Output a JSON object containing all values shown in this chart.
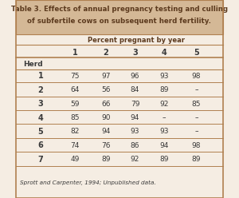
{
  "title_line1": "Table 3. Effects of annual pregnancy testing and culling",
  "title_line2": "of subfertile cows on subsequent herd fertility.",
  "title_bg": "#d4b896",
  "title_text_color": "#5c3a1e",
  "table_bg": "#f5ede3",
  "col_header": "Percent pregnant by year",
  "col_header_color": "#5c3a1e",
  "year_cols": [
    "1",
    "2",
    "3",
    "4",
    "5"
  ],
  "herd_label": "Herd",
  "herds": [
    "1",
    "2",
    "3",
    "4",
    "5",
    "6",
    "7"
  ],
  "data": [
    [
      "75",
      "97",
      "96",
      "93",
      "98"
    ],
    [
      "64",
      "56",
      "84",
      "89",
      "–"
    ],
    [
      "59",
      "66",
      "79",
      "92",
      "85"
    ],
    [
      "85",
      "90",
      "94",
      "–",
      "–"
    ],
    [
      "82",
      "94",
      "93",
      "93",
      "–"
    ],
    [
      "74",
      "76",
      "86",
      "94",
      "98"
    ],
    [
      "49",
      "89",
      "92",
      "89",
      "89"
    ]
  ],
  "footnote": "Sprott and Carpenter, 1994; Unpublished data.",
  "line_color": "#b08050",
  "text_color": "#3a3a3a",
  "bold_color": "#3a3a3a"
}
